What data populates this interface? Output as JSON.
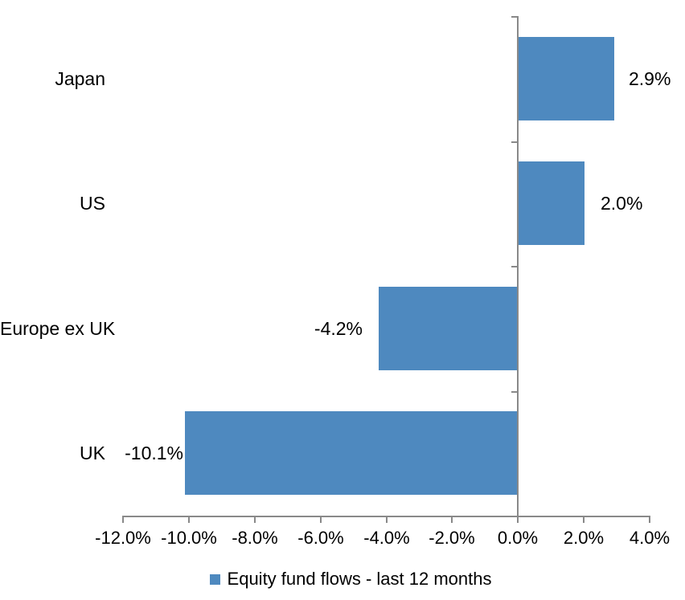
{
  "chart_data": {
    "type": "bar",
    "orientation": "horizontal",
    "categories": [
      "Japan",
      "US",
      "Europe ex UK",
      "UK"
    ],
    "values": [
      2.9,
      2.0,
      -4.2,
      -10.1
    ],
    "data_labels": [
      "2.9%",
      "2.0%",
      "-4.2%",
      "-10.1%"
    ],
    "series": [
      {
        "name": "Equity fund flows - last 12 months",
        "values": [
          2.9,
          2.0,
          -4.2,
          -10.1
        ]
      }
    ],
    "legend": {
      "label": "Equity fund flows - last 12 months",
      "position": "bottom",
      "marker_color": "#4e89bf"
    },
    "x_axis": {
      "min": -12,
      "max": 4,
      "step": 2,
      "tick_labels": [
        "-12.0%",
        "-10.0%",
        "-8.0%",
        "-6.0%",
        "-4.0%",
        "-2.0%",
        "0.0%",
        "2.0%",
        "4.0%"
      ]
    },
    "grid": false,
    "colors": {
      "bar": "#4e89bf",
      "axis": "#898989",
      "text": "#000000",
      "background": "#ffffff"
    }
  }
}
